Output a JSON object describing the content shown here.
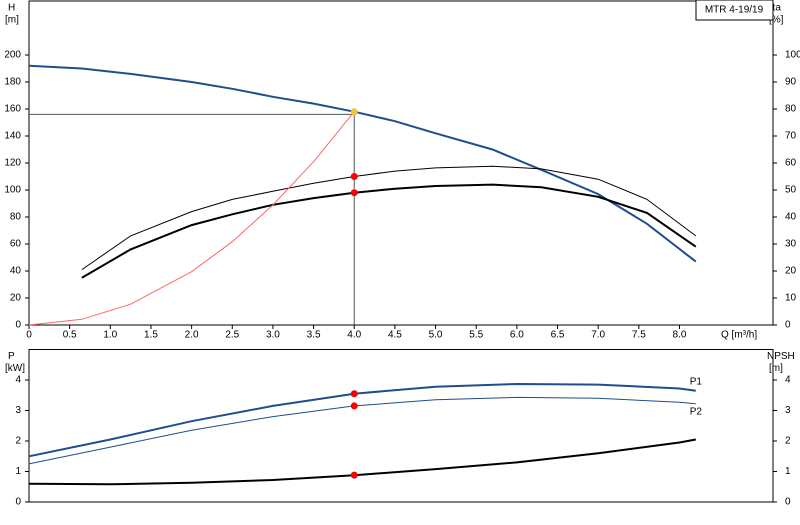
{
  "chart_data": [
    {
      "type": "line",
      "title": "MTR 4-19/19",
      "y_label": "H",
      "y_unit": "[m]",
      "y2_label": "eta",
      "y2_unit": "[%]",
      "x_label": "Q [m³/h]",
      "x": [
        0,
        0.65,
        1.25,
        2,
        2.5,
        3,
        3.5,
        4,
        4.5,
        5,
        5.7,
        6.3,
        7,
        7.6,
        8.2
      ],
      "series": [
        {
          "color": "#1f4e8c",
          "line_width": 2,
          "values": [
            192,
            190,
            186,
            180,
            175,
            169,
            164,
            158,
            151,
            142,
            130,
            115,
            97,
            75,
            47
          ]
        },
        {
          "color": "#000000",
          "line_width": 1,
          "axis": "y2",
          "values": [
            null,
            20.5,
            33,
            42,
            46.5,
            49.5,
            52.5,
            55,
            57,
            58.2,
            58.8,
            57.8,
            54,
            46.5,
            33
          ]
        },
        {
          "color": "#000000",
          "line_width": 2,
          "axis": "y2",
          "values": [
            null,
            17.5,
            28,
            37,
            41,
            44.5,
            47,
            49,
            50.5,
            51.5,
            52,
            51,
            47.5,
            41.5,
            29
          ]
        },
        {
          "color": "#ff6666",
          "line_width": 1,
          "values": [
            0,
            4.2,
            15.4,
            39.5,
            61.7,
            88.9,
            121,
            158,
            null,
            null,
            null,
            null,
            null,
            null,
            null
          ]
        }
      ],
      "markers": [
        {
          "x": 4,
          "y": 158,
          "color": "#f6c33b"
        },
        {
          "x": 4,
          "y": 55,
          "axis": "y2",
          "color": "#ff0000"
        },
        {
          "x": 4,
          "y": 49,
          "axis": "y2",
          "color": "#ff0000"
        }
      ],
      "crosshair": {
        "x": 4,
        "y": 156
      },
      "xlim": [
        0,
        9.15
      ],
      "xticks": [
        0,
        0.5,
        {
          "value": 1,
          "label": "1.0"
        },
        1.5,
        {
          "value": 2,
          "label": "2.0"
        },
        2.5,
        {
          "value": 3,
          "label": "3.0"
        },
        3.5,
        {
          "value": 4,
          "label": "4.0"
        },
        4.5,
        {
          "value": 5,
          "label": "5.0"
        },
        5.5,
        {
          "value": 6,
          "label": "6.0"
        },
        6.5,
        {
          "value": 7,
          "label": "7.0"
        },
        7.5,
        {
          "value": 8,
          "label": "8.0"
        }
      ],
      "ylim": [
        0,
        240
      ],
      "yticks": [
        0,
        20,
        40,
        60,
        80,
        100,
        120,
        140,
        160,
        180,
        200
      ],
      "y2lim": [
        0,
        120
      ],
      "y2ticks": [
        0,
        10,
        20,
        30,
        40,
        50,
        60,
        70,
        80,
        90,
        100
      ]
    },
    {
      "type": "line",
      "y_label": "P",
      "y_unit": "[kW]",
      "y2_label": "NPSH",
      "y2_unit": "[m]",
      "x": [
        0,
        1,
        2,
        3,
        4,
        5,
        6,
        7,
        8,
        8.2
      ],
      "series": [
        {
          "name": "P1",
          "color": "#1f4e8c",
          "line_width": 2,
          "values": [
            1.5,
            2.05,
            2.65,
            3.15,
            3.55,
            3.78,
            3.87,
            3.85,
            3.72,
            3.65
          ]
        },
        {
          "name": "P2",
          "color": "#1f4e8c",
          "line_width": 1,
          "values": [
            1.25,
            1.8,
            2.35,
            2.8,
            3.15,
            3.35,
            3.43,
            3.4,
            3.27,
            3.22
          ]
        },
        {
          "color": "#000000",
          "line_width": 2,
          "axis": "y2",
          "values": [
            0.6,
            0.58,
            0.63,
            0.72,
            0.88,
            1.08,
            1.3,
            1.6,
            1.95,
            2.05
          ]
        }
      ],
      "markers": [
        {
          "x": 4,
          "y": 3.55,
          "color": "#ff0000"
        },
        {
          "x": 4,
          "y": 3.15,
          "color": "#ff0000"
        },
        {
          "x": 4,
          "y": 0.88,
          "axis": "y2",
          "color": "#ff0000"
        }
      ],
      "xlim": [
        0,
        9.15
      ],
      "ylim": [
        0,
        5
      ],
      "yticks": [
        0,
        1,
        2,
        3,
        4
      ],
      "y2lim": [
        0,
        5
      ],
      "y2ticks": [
        0,
        1,
        2,
        3,
        4
      ]
    }
  ]
}
